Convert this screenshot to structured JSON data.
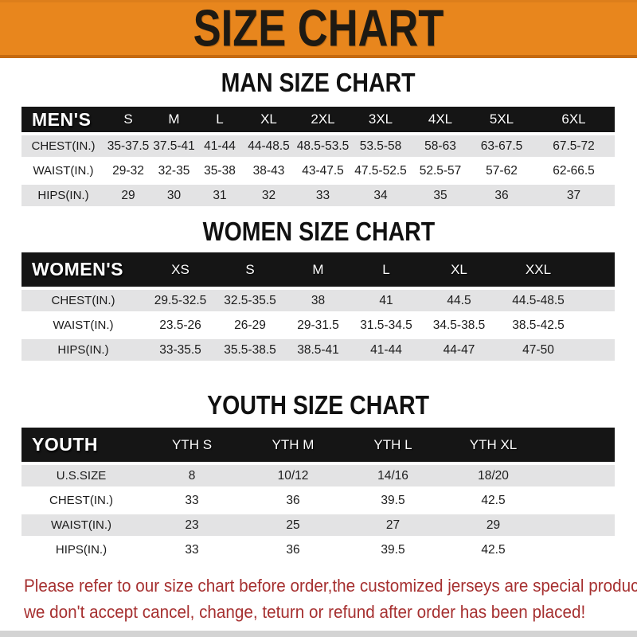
{
  "banner": {
    "title": "SIZE CHART"
  },
  "colors": {
    "banner_bg": "#E8861D",
    "bar_bg": "#151515",
    "row_shade": "#E3E3E4",
    "notice_red": "#A63030"
  },
  "sections": [
    {
      "key": "men",
      "heading": "MAN SIZE CHART",
      "table_label": "MEN'S",
      "columns": [
        "S",
        "M",
        "L",
        "XL",
        "2XL",
        "3XL",
        "4XL",
        "5XL",
        "6XL"
      ],
      "trailing_blank": false,
      "rows": [
        {
          "label": "CHEST(IN.)",
          "values": [
            "35-37.5",
            "37.5-41",
            "41-44",
            "44-48.5",
            "48.5-53.5",
            "53.5-58",
            "58-63",
            "63-67.5",
            "67.5-72"
          ]
        },
        {
          "label": "WAIST(IN.)",
          "values": [
            "29-32",
            "32-35",
            "35-38",
            "38-43",
            "43-47.5",
            "47.5-52.5",
            "52.5-57",
            "57-62",
            "62-66.5"
          ]
        },
        {
          "label": "HIPS(IN.)",
          "values": [
            "29",
            "30",
            "31",
            "32",
            "33",
            "34",
            "35",
            "36",
            "37"
          ]
        }
      ]
    },
    {
      "key": "women",
      "heading": "WOMEN SIZE CHART",
      "table_label": "WOMEN'S",
      "columns": [
        "XS",
        "S",
        "M",
        "L",
        "XL",
        "XXL"
      ],
      "trailing_blank": true,
      "rows": [
        {
          "label": "CHEST(IN.)",
          "values": [
            "29.5-32.5",
            "32.5-35.5",
            "38",
            "41",
            "44.5",
            "44.5-48.5"
          ]
        },
        {
          "label": "WAIST(IN.)",
          "values": [
            "23.5-26",
            "26-29",
            "29-31.5",
            "31.5-34.5",
            "34.5-38.5",
            "38.5-42.5"
          ]
        },
        {
          "label": "HIPS(IN.)",
          "values": [
            "33-35.5",
            "35.5-38.5",
            "38.5-41",
            "41-44",
            "44-47",
            "47-50"
          ]
        }
      ]
    },
    {
      "key": "youth",
      "heading": "YOUTH SIZE CHART",
      "table_label": "YOUTH",
      "columns": [
        "YTH S",
        "YTH M",
        "YTH L",
        "YTH XL"
      ],
      "trailing_blank": true,
      "rows": [
        {
          "label": "U.S.SIZE",
          "values": [
            "8",
            "10/12",
            "14/16",
            "18/20"
          ]
        },
        {
          "label": "CHEST(IN.)",
          "values": [
            "33",
            "36",
            "39.5",
            "42.5"
          ]
        },
        {
          "label": "WAIST(IN.)",
          "values": [
            "23",
            "25",
            "27",
            "29"
          ]
        },
        {
          "label": "HIPS(IN.)",
          "values": [
            "33",
            "36",
            "39.5",
            "42.5"
          ]
        }
      ]
    }
  ],
  "footer": {
    "line1": "Please refer to our size chart before order,the customized jerseys are special products,",
    "line2": "we don't accept cancel, change, teturn or refund after order has been placed!"
  }
}
